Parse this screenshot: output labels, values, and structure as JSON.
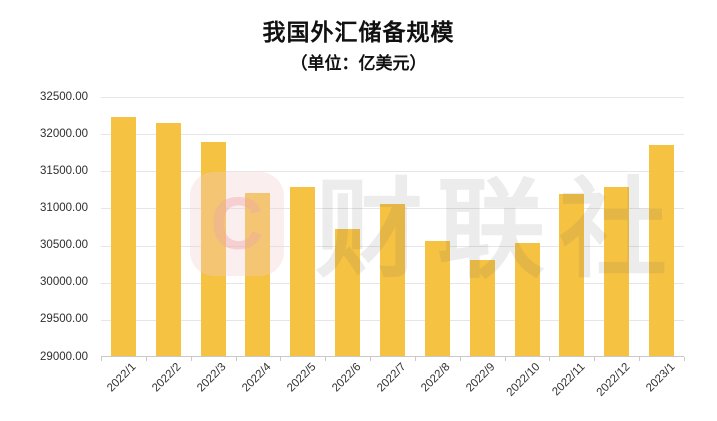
{
  "header": {
    "title": "我国外汇储备规模",
    "subtitle": "（单位：亿美元）"
  },
  "watermark": {
    "logo_letter": "C",
    "text": "财联社"
  },
  "colors": {
    "bar": "#F5C242",
    "gridline": "#E6E6E6",
    "axis_line": "#C9C9C9",
    "title_text": "#111111",
    "tick_text": "#2E2E2E",
    "watermark_pink": "#FBEDED",
    "watermark_gray": "#ECECEC"
  },
  "chart_data": {
    "type": "bar",
    "title": "我国外汇储备规模",
    "subtitle": "（单位：亿美元）",
    "xlabel": "",
    "ylabel": "亿美元",
    "categories": [
      "2022/1",
      "2022/2",
      "2022/3",
      "2022/4",
      "2022/5",
      "2022/6",
      "2022/7",
      "2022/8",
      "2022/9",
      "2022/10",
      "2022/11",
      "2022/12",
      "2023/1"
    ],
    "values": [
      32216.4,
      32138.2,
      31879.9,
      31197.0,
      31278.0,
      30712.7,
      31040.7,
      30548.8,
      30290.0,
      30524.3,
      31174.5,
      31276.9,
      31844.6
    ],
    "ylim": [
      29000.0,
      32500.0
    ],
    "ytick_step": 500,
    "ytick_labels": [
      "32500.00",
      "32000.00",
      "31500.00",
      "31000.00",
      "30500.00",
      "30000.00",
      "29500.00",
      "29000.00"
    ],
    "grid": true,
    "legend": false,
    "bar_color": "#F5C242"
  }
}
